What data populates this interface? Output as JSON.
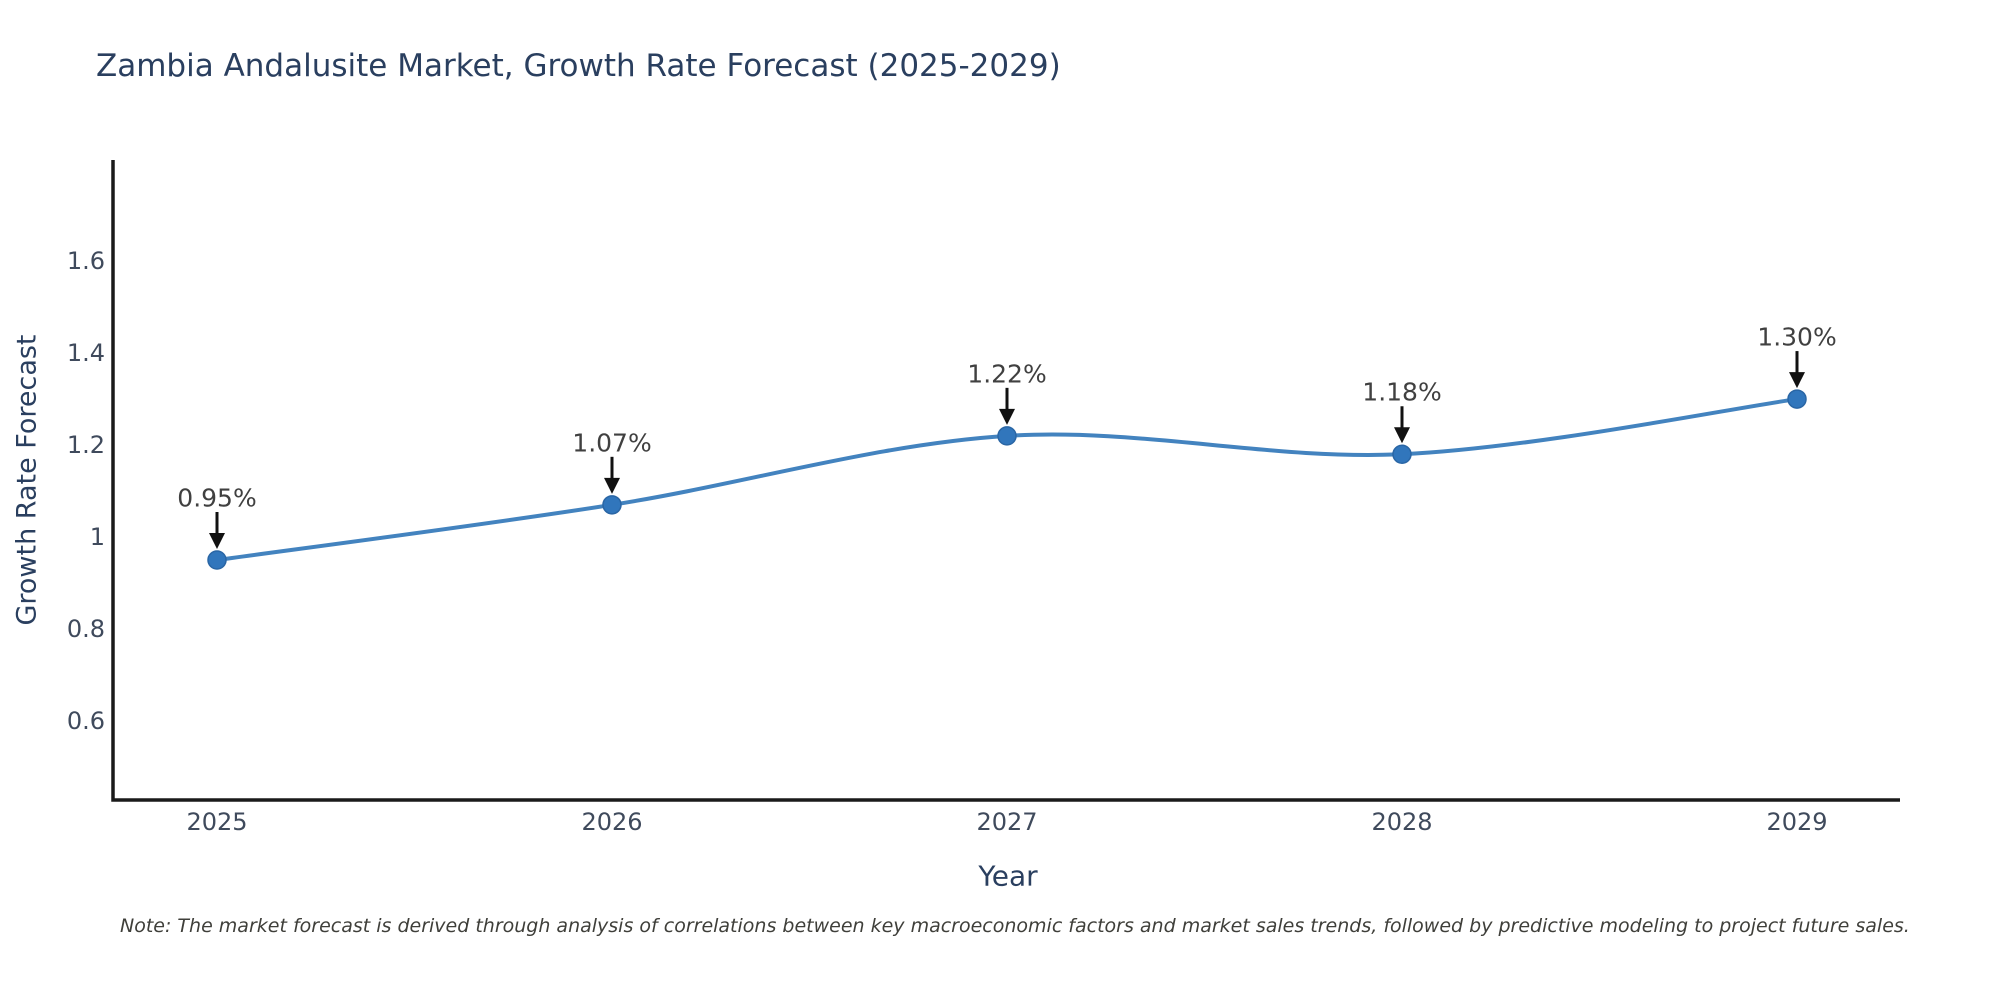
{
  "chart_data": {
    "type": "line",
    "title": "Zambia Andalusite Market, Growth Rate Forecast (2025-2029)",
    "xlabel": "Year",
    "ylabel": "Growth Rate Forecast",
    "categories": [
      "2025",
      "2026",
      "2027",
      "2028",
      "2029"
    ],
    "values": [
      0.95,
      1.07,
      1.22,
      1.18,
      1.3
    ],
    "point_labels": [
      "0.95%",
      "1.07%",
      "1.22%",
      "1.18%",
      "1.30%"
    ],
    "ytick_values": [
      0.6,
      0.8,
      1,
      1.2,
      1.4,
      1.6
    ],
    "ytick_labels": [
      "0.6",
      "0.8",
      "1",
      "1.2",
      "1.4",
      "1.6"
    ],
    "ylim": [
      0.428,
      1.82
    ],
    "grid": false,
    "legend": "none",
    "line_shape": "spline",
    "colors": {
      "line": "#4383bf",
      "marker": "#3176bc",
      "marker_edge": "#2a66a5",
      "axis": "#1a1a1a",
      "arrow": "#111111"
    }
  },
  "note": "Note: The market forecast is derived through analysis of correlations between key macroeconomic factors and market sales trends, followed by predictive modeling to project future sales."
}
